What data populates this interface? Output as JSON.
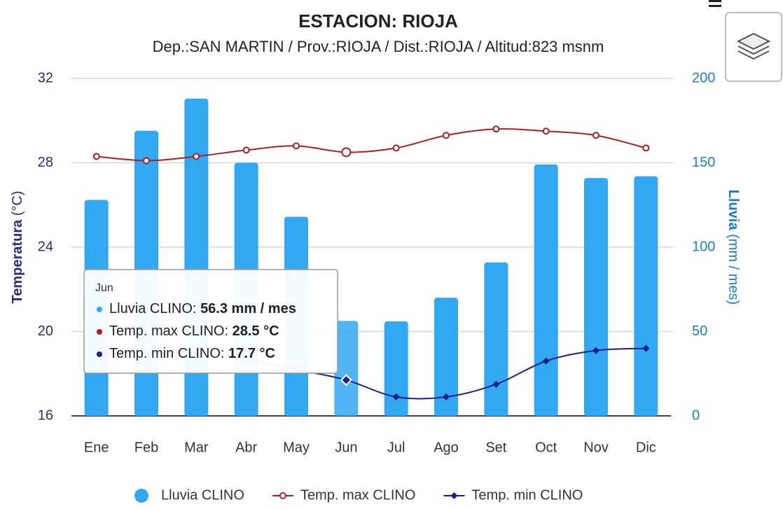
{
  "chart_data": {
    "type": "combo",
    "title": "ESTACION: RIOJA",
    "subtitle": "Dep.:SAN MARTIN / Prov.:RIOJA / Dist.:RIOJA / Altitud:823 msnm",
    "ylabel_main": "Temperatura",
    "ylabel_unit": "(°C)",
    "y2label_main": "Lluvia",
    "y2label_unit": "(mm / mes)",
    "categories": [
      "Ene",
      "Feb",
      "Mar",
      "Abr",
      "May",
      "Jun",
      "Jul",
      "Ago",
      "Set",
      "Oct",
      "Nov",
      "Dic"
    ],
    "ylim": [
      16,
      32
    ],
    "yticks": [
      16,
      20,
      24,
      28,
      32
    ],
    "y2lim": [
      0,
      200
    ],
    "y2ticks": [
      0,
      50,
      100,
      150,
      200
    ],
    "grid": true,
    "legend": "bottom",
    "series": [
      {
        "name": "Lluvia CLINO",
        "type": "bar",
        "axis": "y2",
        "color": "#33a8f2",
        "values": [
          128,
          169,
          188,
          150,
          118,
          56.3,
          56,
          70,
          91,
          149,
          141,
          142
        ]
      },
      {
        "name": "Temp. max CLINO",
        "type": "line",
        "marker": "circle",
        "color": "#a52222",
        "values": [
          28.3,
          28.1,
          28.3,
          28.6,
          28.8,
          28.5,
          28.7,
          29.3,
          29.6,
          29.5,
          29.3,
          28.7
        ]
      },
      {
        "name": "Temp. min CLINO",
        "type": "line",
        "marker": "diamond",
        "color": "#1f1f8a",
        "values": [
          19.0,
          19.0,
          19.0,
          18.7,
          18.2,
          17.7,
          16.9,
          16.9,
          17.5,
          18.6,
          19.1,
          19.2
        ]
      }
    ],
    "tooltip": {
      "header": "Jun",
      "items": [
        {
          "label": "Lluvia CLINO: ",
          "value": "56.3 mm / mes"
        },
        {
          "label": "Temp. max CLINO: ",
          "value": "28.5 °C"
        },
        {
          "label": "Temp. min CLINO: ",
          "value": "17.7 °C"
        }
      ]
    }
  }
}
